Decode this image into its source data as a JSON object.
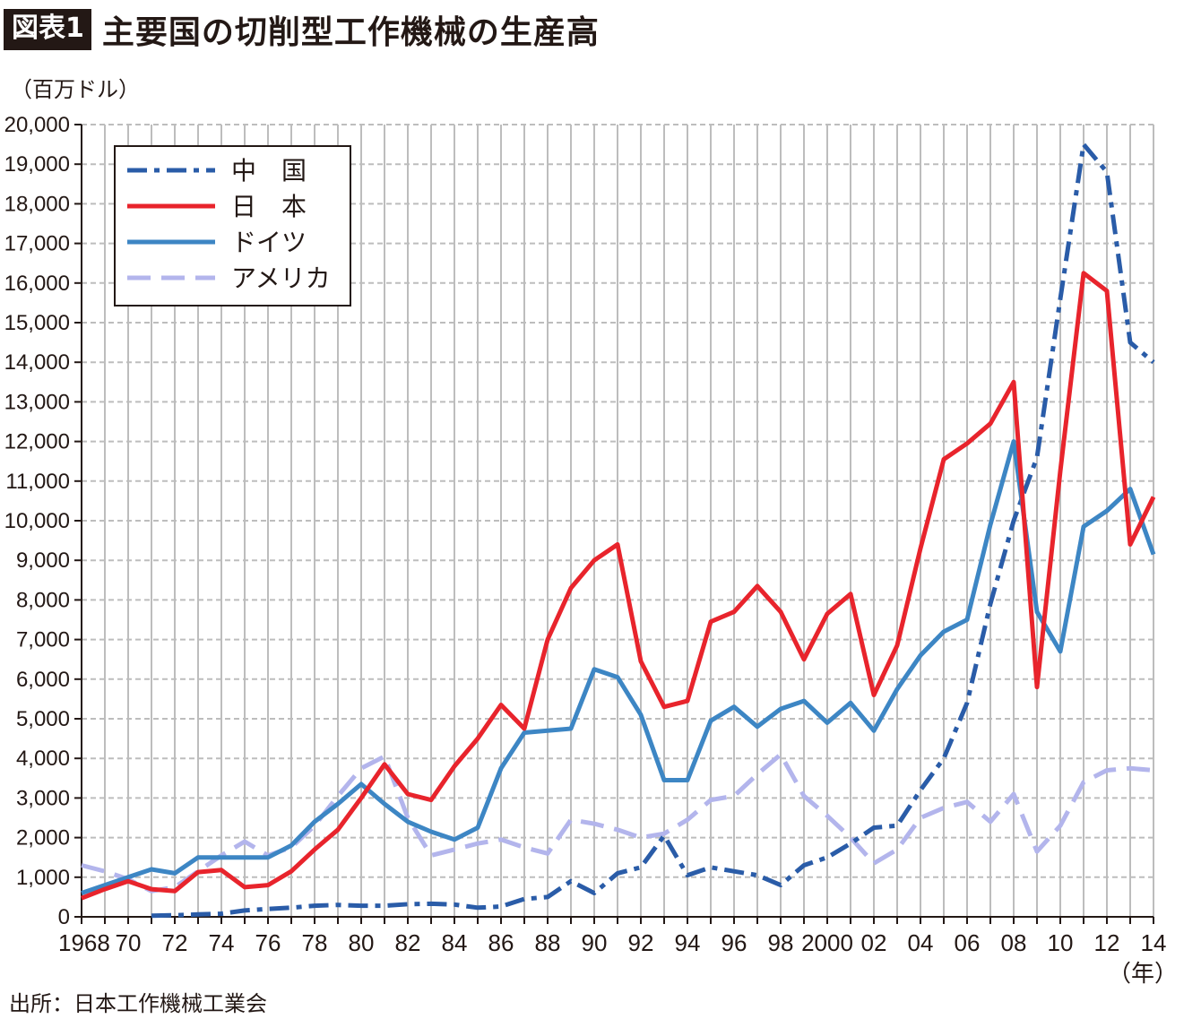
{
  "header": {
    "badge": "図表1",
    "title": "主要国の切削型工作機械の生産高"
  },
  "source": "出所：日本工作機械工業会",
  "colors": {
    "china": "#2a5ca8",
    "japan": "#e8242c",
    "germany": "#3d86c4",
    "usa": "#b3b5ec",
    "grid": "#bdbdbd",
    "axis": "#231815"
  },
  "chart_data": {
    "type": "line",
    "ylabel": "（百万ドル）",
    "xlabel": "（年）",
    "ylim": [
      0,
      20000
    ],
    "xlim": [
      1968,
      2014
    ],
    "yticks": [
      0,
      1000,
      2000,
      3000,
      4000,
      5000,
      6000,
      7000,
      8000,
      9000,
      10000,
      11000,
      12000,
      13000,
      14000,
      15000,
      16000,
      17000,
      18000,
      19000,
      20000
    ],
    "ytick_labels": [
      "0",
      "1,000",
      "2,000",
      "3,000",
      "4,000",
      "5,000",
      "6,000",
      "7,000",
      "8,000",
      "9,000",
      "10,000",
      "11,000",
      "12,000",
      "13,000",
      "14,000",
      "15,000",
      "16,000",
      "17,000",
      "18,000",
      "19,000",
      "20,000"
    ],
    "xticks": [
      {
        "year": 1968,
        "label": "1968"
      },
      {
        "year": 1970,
        "label": "70"
      },
      {
        "year": 1972,
        "label": "72"
      },
      {
        "year": 1974,
        "label": "74"
      },
      {
        "year": 1976,
        "label": "76"
      },
      {
        "year": 1978,
        "label": "78"
      },
      {
        "year": 1980,
        "label": "80"
      },
      {
        "year": 1982,
        "label": "82"
      },
      {
        "year": 1984,
        "label": "84"
      },
      {
        "year": 1986,
        "label": "86"
      },
      {
        "year": 1988,
        "label": "88"
      },
      {
        "year": 1990,
        "label": "90"
      },
      {
        "year": 1992,
        "label": "92"
      },
      {
        "year": 1994,
        "label": "94"
      },
      {
        "year": 1996,
        "label": "96"
      },
      {
        "year": 1998,
        "label": "98"
      },
      {
        "year": 2000,
        "label": "2000"
      },
      {
        "year": 2002,
        "label": "02"
      },
      {
        "year": 2004,
        "label": "04"
      },
      {
        "year": 2006,
        "label": "06"
      },
      {
        "year": 2008,
        "label": "08"
      },
      {
        "year": 2010,
        "label": "10"
      },
      {
        "year": 2012,
        "label": "12"
      },
      {
        "year": 2014,
        "label": "14"
      }
    ],
    "grid": true,
    "legend_position": "top-left",
    "series": [
      {
        "name": "中　国",
        "key": "china",
        "style": "dashdot",
        "x": [
          1971,
          1972,
          1973,
          1974,
          1975,
          1976,
          1977,
          1978,
          1979,
          1980,
          1981,
          1982,
          1983,
          1984,
          1985,
          1986,
          1987,
          1988,
          1989,
          1990,
          1991,
          1992,
          1993,
          1994,
          1995,
          1996,
          1997,
          1998,
          1999,
          2000,
          2001,
          2002,
          2003,
          2004,
          2005,
          2006,
          2007,
          2008,
          2009,
          2010,
          2011,
          2012,
          2013,
          2014
        ],
        "values": [
          30,
          40,
          60,
          80,
          160,
          200,
          230,
          280,
          300,
          280,
          280,
          320,
          330,
          310,
          230,
          260,
          450,
          500,
          900,
          600,
          1100,
          1250,
          2050,
          1050,
          1250,
          1150,
          1050,
          800,
          1300,
          1500,
          1850,
          2250,
          2300,
          3200,
          4000,
          5400,
          7900,
          10000,
          11600,
          15600,
          19500,
          18800,
          14500,
          14000
        ]
      },
      {
        "name": "日　本",
        "key": "japan",
        "style": "solid",
        "x": [
          1968,
          1969,
          1970,
          1971,
          1972,
          1973,
          1974,
          1975,
          1976,
          1977,
          1978,
          1979,
          1980,
          1981,
          1982,
          1983,
          1984,
          1985,
          1986,
          1987,
          1988,
          1989,
          1990,
          1991,
          1992,
          1993,
          1994,
          1995,
          1996,
          1997,
          1998,
          1999,
          2000,
          2001,
          2002,
          2003,
          2004,
          2005,
          2006,
          2007,
          2008,
          2009,
          2010,
          2011,
          2012,
          2013,
          2014
        ],
        "values": [
          470,
          700,
          900,
          700,
          650,
          1130,
          1180,
          750,
          800,
          1150,
          1700,
          2200,
          3000,
          3850,
          3100,
          2950,
          3800,
          4500,
          5350,
          4750,
          7000,
          8300,
          9000,
          9400,
          6450,
          5300,
          5450,
          7450,
          7700,
          8350,
          7700,
          6500,
          7650,
          8150,
          5600,
          6850,
          9300,
          11550,
          11950,
          12450,
          13500,
          5800,
          11250,
          16250,
          15800,
          9400,
          10600
        ]
      },
      {
        "name": "ドイツ",
        "key": "germany",
        "style": "solid",
        "x": [
          1968,
          1969,
          1970,
          1971,
          1972,
          1973,
          1974,
          1975,
          1976,
          1977,
          1978,
          1979,
          1980,
          1981,
          1982,
          1983,
          1984,
          1985,
          1986,
          1987,
          1988,
          1989,
          1990,
          1991,
          1992,
          1993,
          1994,
          1995,
          1996,
          1997,
          1998,
          1999,
          2000,
          2001,
          2002,
          2003,
          2004,
          2005,
          2006,
          2007,
          2008,
          2009,
          2010,
          2011,
          2012,
          2013,
          2014
        ],
        "values": [
          600,
          800,
          1000,
          1200,
          1100,
          1500,
          1500,
          1500,
          1500,
          1800,
          2400,
          2850,
          3350,
          2850,
          2400,
          2150,
          1950,
          2250,
          3750,
          4650,
          4700,
          4750,
          6250,
          6050,
          5100,
          3450,
          3450,
          4950,
          5300,
          4800,
          5250,
          5450,
          4900,
          5400,
          4700,
          5750,
          6600,
          7200,
          7500,
          9900,
          12000,
          7700,
          6700,
          9850,
          10250,
          10800,
          9150
        ]
      },
      {
        "name": "アメリカ",
        "key": "usa",
        "style": "dash",
        "x": [
          1968,
          1969,
          1970,
          1971,
          1972,
          1973,
          1974,
          1975,
          1976,
          1977,
          1978,
          1979,
          1980,
          1981,
          1982,
          1983,
          1984,
          1985,
          1986,
          1987,
          1988,
          1989,
          1990,
          1991,
          1992,
          1993,
          1994,
          1995,
          1996,
          1997,
          1998,
          1999,
          2000,
          2001,
          2002,
          2003,
          2004,
          2005,
          2006,
          2007,
          2008,
          2009,
          2010,
          2011,
          2012,
          2013,
          2014
        ],
        "values": [
          1300,
          1150,
          950,
          650,
          750,
          1150,
          1550,
          1900,
          1550,
          1750,
          2300,
          3050,
          3750,
          4050,
          2500,
          1550,
          1700,
          1850,
          1950,
          1750,
          1600,
          2450,
          2350,
          2200,
          2000,
          2100,
          2450,
          2950,
          3050,
          3600,
          4100,
          3050,
          2550,
          2000,
          1350,
          1700,
          2500,
          2750,
          2900,
          2400,
          3100,
          1650,
          2300,
          3400,
          3700,
          3750,
          3700
        ]
      }
    ]
  }
}
